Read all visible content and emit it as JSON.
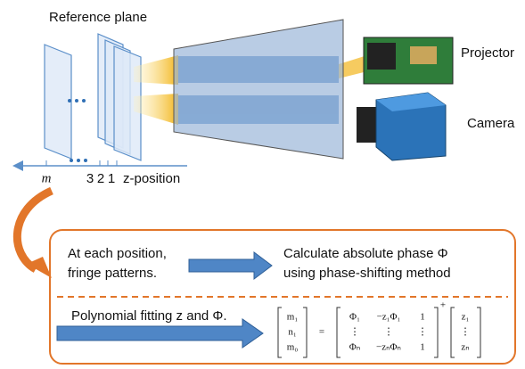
{
  "labels": {
    "reference_plane": "Reference plane",
    "projector": "Projector",
    "camera": "Camera"
  },
  "axis": {
    "m": "m",
    "ticks": [
      "3",
      "2",
      "1"
    ],
    "z_position": "z-position"
  },
  "process": {
    "step1": [
      "At each position,",
      "fringe patterns."
    ],
    "step2": [
      "Calculate absolute phase Φ",
      "using phase-shifting method"
    ],
    "step3": "Polynomial fitting z and Φ."
  },
  "equation": {
    "lhs": [
      "m₁",
      "n₁",
      "m₀"
    ],
    "equals": "=",
    "matrix": [
      [
        "Φ₁",
        "−z₁Φ₁",
        "1"
      ],
      [
        "⋮",
        "⋮",
        "⋮"
      ],
      [
        "Φₙ",
        "−zₙΦₙ",
        "1"
      ]
    ],
    "superscript": "+",
    "vector": [
      "z₁",
      "⋮",
      "zₙ"
    ]
  }
}
